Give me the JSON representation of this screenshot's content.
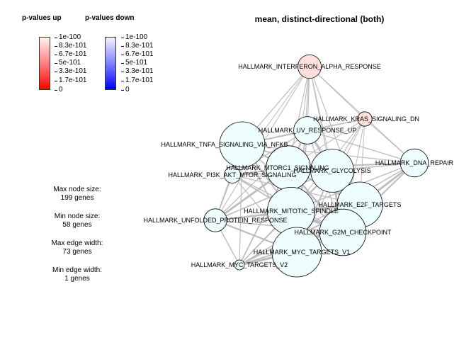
{
  "legend": {
    "up_title": "p-values up",
    "down_title": "p-values down",
    "ticks": [
      "1e-100",
      "8.3e-101",
      "6.7e-101",
      "5e-101",
      "3.3e-101",
      "1.7e-101",
      "0"
    ],
    "up_colors": {
      "high": "#ffffff",
      "low": "#ff0000"
    },
    "down_colors": {
      "high": "#ffffff",
      "low": "#0000ff"
    }
  },
  "info": {
    "max_node_label": "Max node size:",
    "max_node_value": "199 genes",
    "min_node_label": "Min node size:",
    "min_node_value": "58 genes",
    "max_edge_label": "Max edge width:",
    "max_edge_value": "73 genes",
    "min_edge_label": "Min edge width:",
    "min_edge_value": "1 genes"
  },
  "graph": {
    "title": "mean, distinct-directional (both)",
    "colors": {
      "up": "#fde0dc",
      "neutral": "#eefdfd",
      "edge": "#bdbdbd"
    },
    "nodes": [
      {
        "id": "ifna",
        "label": "HALLMARK_INTERFERON_ALPHA_RESPONSE",
        "genes": 97,
        "direction": "up"
      },
      {
        "id": "kras",
        "label": "HALLMARK_KRAS_SIGNALING_DN",
        "genes": 70,
        "direction": "up"
      },
      {
        "id": "uv",
        "label": "HALLMARK_UV_RESPONSE_UP",
        "genes": 110,
        "direction": "neutral"
      },
      {
        "id": "tnfa",
        "label": "HALLMARK_TNFA_SIGNALING_VIA_NFKB",
        "genes": 180,
        "direction": "neutral"
      },
      {
        "id": "dna",
        "label": "HALLMARK_DNA_REPAIR",
        "genes": 112,
        "direction": "neutral"
      },
      {
        "id": "mtor",
        "label": "HALLMARK_MTORC1_SIGNALING",
        "genes": 175,
        "direction": "neutral"
      },
      {
        "id": "glyc",
        "label": "HALLMARK_GLYCOLYSIS",
        "genes": 170,
        "direction": "neutral"
      },
      {
        "id": "pi3k",
        "label": "HALLMARK_PI3K_AKT_MTOR_SIGNALING",
        "genes": 75,
        "direction": "neutral"
      },
      {
        "id": "e2f",
        "label": "HALLMARK_E2F_TARGETS",
        "genes": 180,
        "direction": "neutral"
      },
      {
        "id": "spindle",
        "label": "HALLMARK_MITOTIC_SPINDLE",
        "genes": 190,
        "direction": "neutral"
      },
      {
        "id": "upr",
        "label": "HALLMARK_UNFOLDED_PROTEIN_RESPONSE",
        "genes": 95,
        "direction": "neutral"
      },
      {
        "id": "g2m",
        "label": "HALLMARK_G2M_CHECKPOINT",
        "genes": 185,
        "direction": "neutral"
      },
      {
        "id": "myc1",
        "label": "HALLMARK_MYC_TARGETS_V1",
        "genes": 199,
        "direction": "neutral"
      },
      {
        "id": "myc2",
        "label": "HALLMARK_MYC_TARGETS_V2",
        "genes": 58,
        "direction": "neutral"
      }
    ],
    "edges": [
      {
        "source": "ifna",
        "target": "uv",
        "genes": 3
      },
      {
        "source": "ifna",
        "target": "tnfa",
        "genes": 4
      },
      {
        "source": "ifna",
        "target": "mtor",
        "genes": 3
      },
      {
        "source": "ifna",
        "target": "glyc",
        "genes": 2
      },
      {
        "source": "ifna",
        "target": "dna",
        "genes": 2
      },
      {
        "source": "ifna",
        "target": "e2f",
        "genes": 3
      },
      {
        "source": "ifna",
        "target": "spindle",
        "genes": 2
      },
      {
        "source": "ifna",
        "target": "upr",
        "genes": 2
      },
      {
        "source": "ifna",
        "target": "g2m",
        "genes": 2
      },
      {
        "source": "ifna",
        "target": "myc1",
        "genes": 3
      },
      {
        "source": "ifna",
        "target": "pi3k",
        "genes": 1
      },
      {
        "source": "ifna",
        "target": "kras",
        "genes": 1
      },
      {
        "source": "kras",
        "target": "uv",
        "genes": 4
      },
      {
        "source": "kras",
        "target": "tnfa",
        "genes": 3
      },
      {
        "source": "kras",
        "target": "mtor",
        "genes": 2
      },
      {
        "source": "kras",
        "target": "glyc",
        "genes": 3
      },
      {
        "source": "kras",
        "target": "dna",
        "genes": 1
      },
      {
        "source": "kras",
        "target": "spindle",
        "genes": 2
      },
      {
        "source": "kras",
        "target": "e2f",
        "genes": 1
      },
      {
        "source": "kras",
        "target": "myc1",
        "genes": 1
      },
      {
        "source": "kras",
        "target": "g2m",
        "genes": 1
      },
      {
        "source": "uv",
        "target": "tnfa",
        "genes": 14
      },
      {
        "source": "uv",
        "target": "mtor",
        "genes": 12
      },
      {
        "source": "uv",
        "target": "glyc",
        "genes": 10
      },
      {
        "source": "uv",
        "target": "spindle",
        "genes": 8
      },
      {
        "source": "uv",
        "target": "e2f",
        "genes": 6
      },
      {
        "source": "uv",
        "target": "dna",
        "genes": 5
      },
      {
        "source": "uv",
        "target": "g2m",
        "genes": 5
      },
      {
        "source": "uv",
        "target": "myc1",
        "genes": 7
      },
      {
        "source": "uv",
        "target": "pi3k",
        "genes": 5
      },
      {
        "source": "uv",
        "target": "upr",
        "genes": 4
      },
      {
        "source": "tnfa",
        "target": "mtor",
        "genes": 18
      },
      {
        "source": "tnfa",
        "target": "glyc",
        "genes": 12
      },
      {
        "source": "tnfa",
        "target": "pi3k",
        "genes": 10
      },
      {
        "source": "tnfa",
        "target": "spindle",
        "genes": 10
      },
      {
        "source": "tnfa",
        "target": "e2f",
        "genes": 6
      },
      {
        "source": "tnfa",
        "target": "upr",
        "genes": 8
      },
      {
        "source": "tnfa",
        "target": "g2m",
        "genes": 8
      },
      {
        "source": "tnfa",
        "target": "myc1",
        "genes": 8
      },
      {
        "source": "tnfa",
        "target": "myc2",
        "genes": 3
      },
      {
        "source": "tnfa",
        "target": "dna",
        "genes": 4
      },
      {
        "source": "dna",
        "target": "e2f",
        "genes": 20
      },
      {
        "source": "dna",
        "target": "glyc",
        "genes": 8
      },
      {
        "source": "dna",
        "target": "mtor",
        "genes": 14
      },
      {
        "source": "dna",
        "target": "g2m",
        "genes": 14
      },
      {
        "source": "dna",
        "target": "myc1",
        "genes": 20
      },
      {
        "source": "dna",
        "target": "spindle",
        "genes": 6
      },
      {
        "source": "dna",
        "target": "myc2",
        "genes": 6
      },
      {
        "source": "mtor",
        "target": "glyc",
        "genes": 30
      },
      {
        "source": "mtor",
        "target": "pi3k",
        "genes": 12
      },
      {
        "source": "mtor",
        "target": "e2f",
        "genes": 18
      },
      {
        "source": "mtor",
        "target": "spindle",
        "genes": 16
      },
      {
        "source": "mtor",
        "target": "upr",
        "genes": 22
      },
      {
        "source": "mtor",
        "target": "g2m",
        "genes": 18
      },
      {
        "source": "mtor",
        "target": "myc1",
        "genes": 35
      },
      {
        "source": "mtor",
        "target": "myc2",
        "genes": 10
      },
      {
        "source": "glyc",
        "target": "pi3k",
        "genes": 8
      },
      {
        "source": "glyc",
        "target": "e2f",
        "genes": 8
      },
      {
        "source": "glyc",
        "target": "spindle",
        "genes": 12
      },
      {
        "source": "glyc",
        "target": "upr",
        "genes": 10
      },
      {
        "source": "glyc",
        "target": "g2m",
        "genes": 10
      },
      {
        "source": "glyc",
        "target": "myc1",
        "genes": 12
      },
      {
        "source": "glyc",
        "target": "myc2",
        "genes": 4
      },
      {
        "source": "pi3k",
        "target": "spindle",
        "genes": 10
      },
      {
        "source": "pi3k",
        "target": "upr",
        "genes": 6
      },
      {
        "source": "pi3k",
        "target": "myc1",
        "genes": 4
      },
      {
        "source": "pi3k",
        "target": "e2f",
        "genes": 4
      },
      {
        "source": "pi3k",
        "target": "g2m",
        "genes": 5
      },
      {
        "source": "e2f",
        "target": "g2m",
        "genes": 73
      },
      {
        "source": "e2f",
        "target": "myc1",
        "genes": 45
      },
      {
        "source": "e2f",
        "target": "spindle",
        "genes": 28
      },
      {
        "source": "e2f",
        "target": "myc2",
        "genes": 14
      },
      {
        "source": "e2f",
        "target": "upr",
        "genes": 12
      },
      {
        "source": "spindle",
        "target": "g2m",
        "genes": 40
      },
      {
        "source": "spindle",
        "target": "myc1",
        "genes": 14
      },
      {
        "source": "spindle",
        "target": "upr",
        "genes": 10
      },
      {
        "source": "spindle",
        "target": "myc2",
        "genes": 5
      },
      {
        "source": "upr",
        "target": "myc1",
        "genes": 16
      },
      {
        "source": "upr",
        "target": "myc2",
        "genes": 6
      },
      {
        "source": "upr",
        "target": "g2m",
        "genes": 8
      },
      {
        "source": "g2m",
        "target": "myc1",
        "genes": 30
      },
      {
        "source": "g2m",
        "target": "myc2",
        "genes": 10
      },
      {
        "source": "myc1",
        "target": "myc2",
        "genes": 28
      }
    ]
  }
}
